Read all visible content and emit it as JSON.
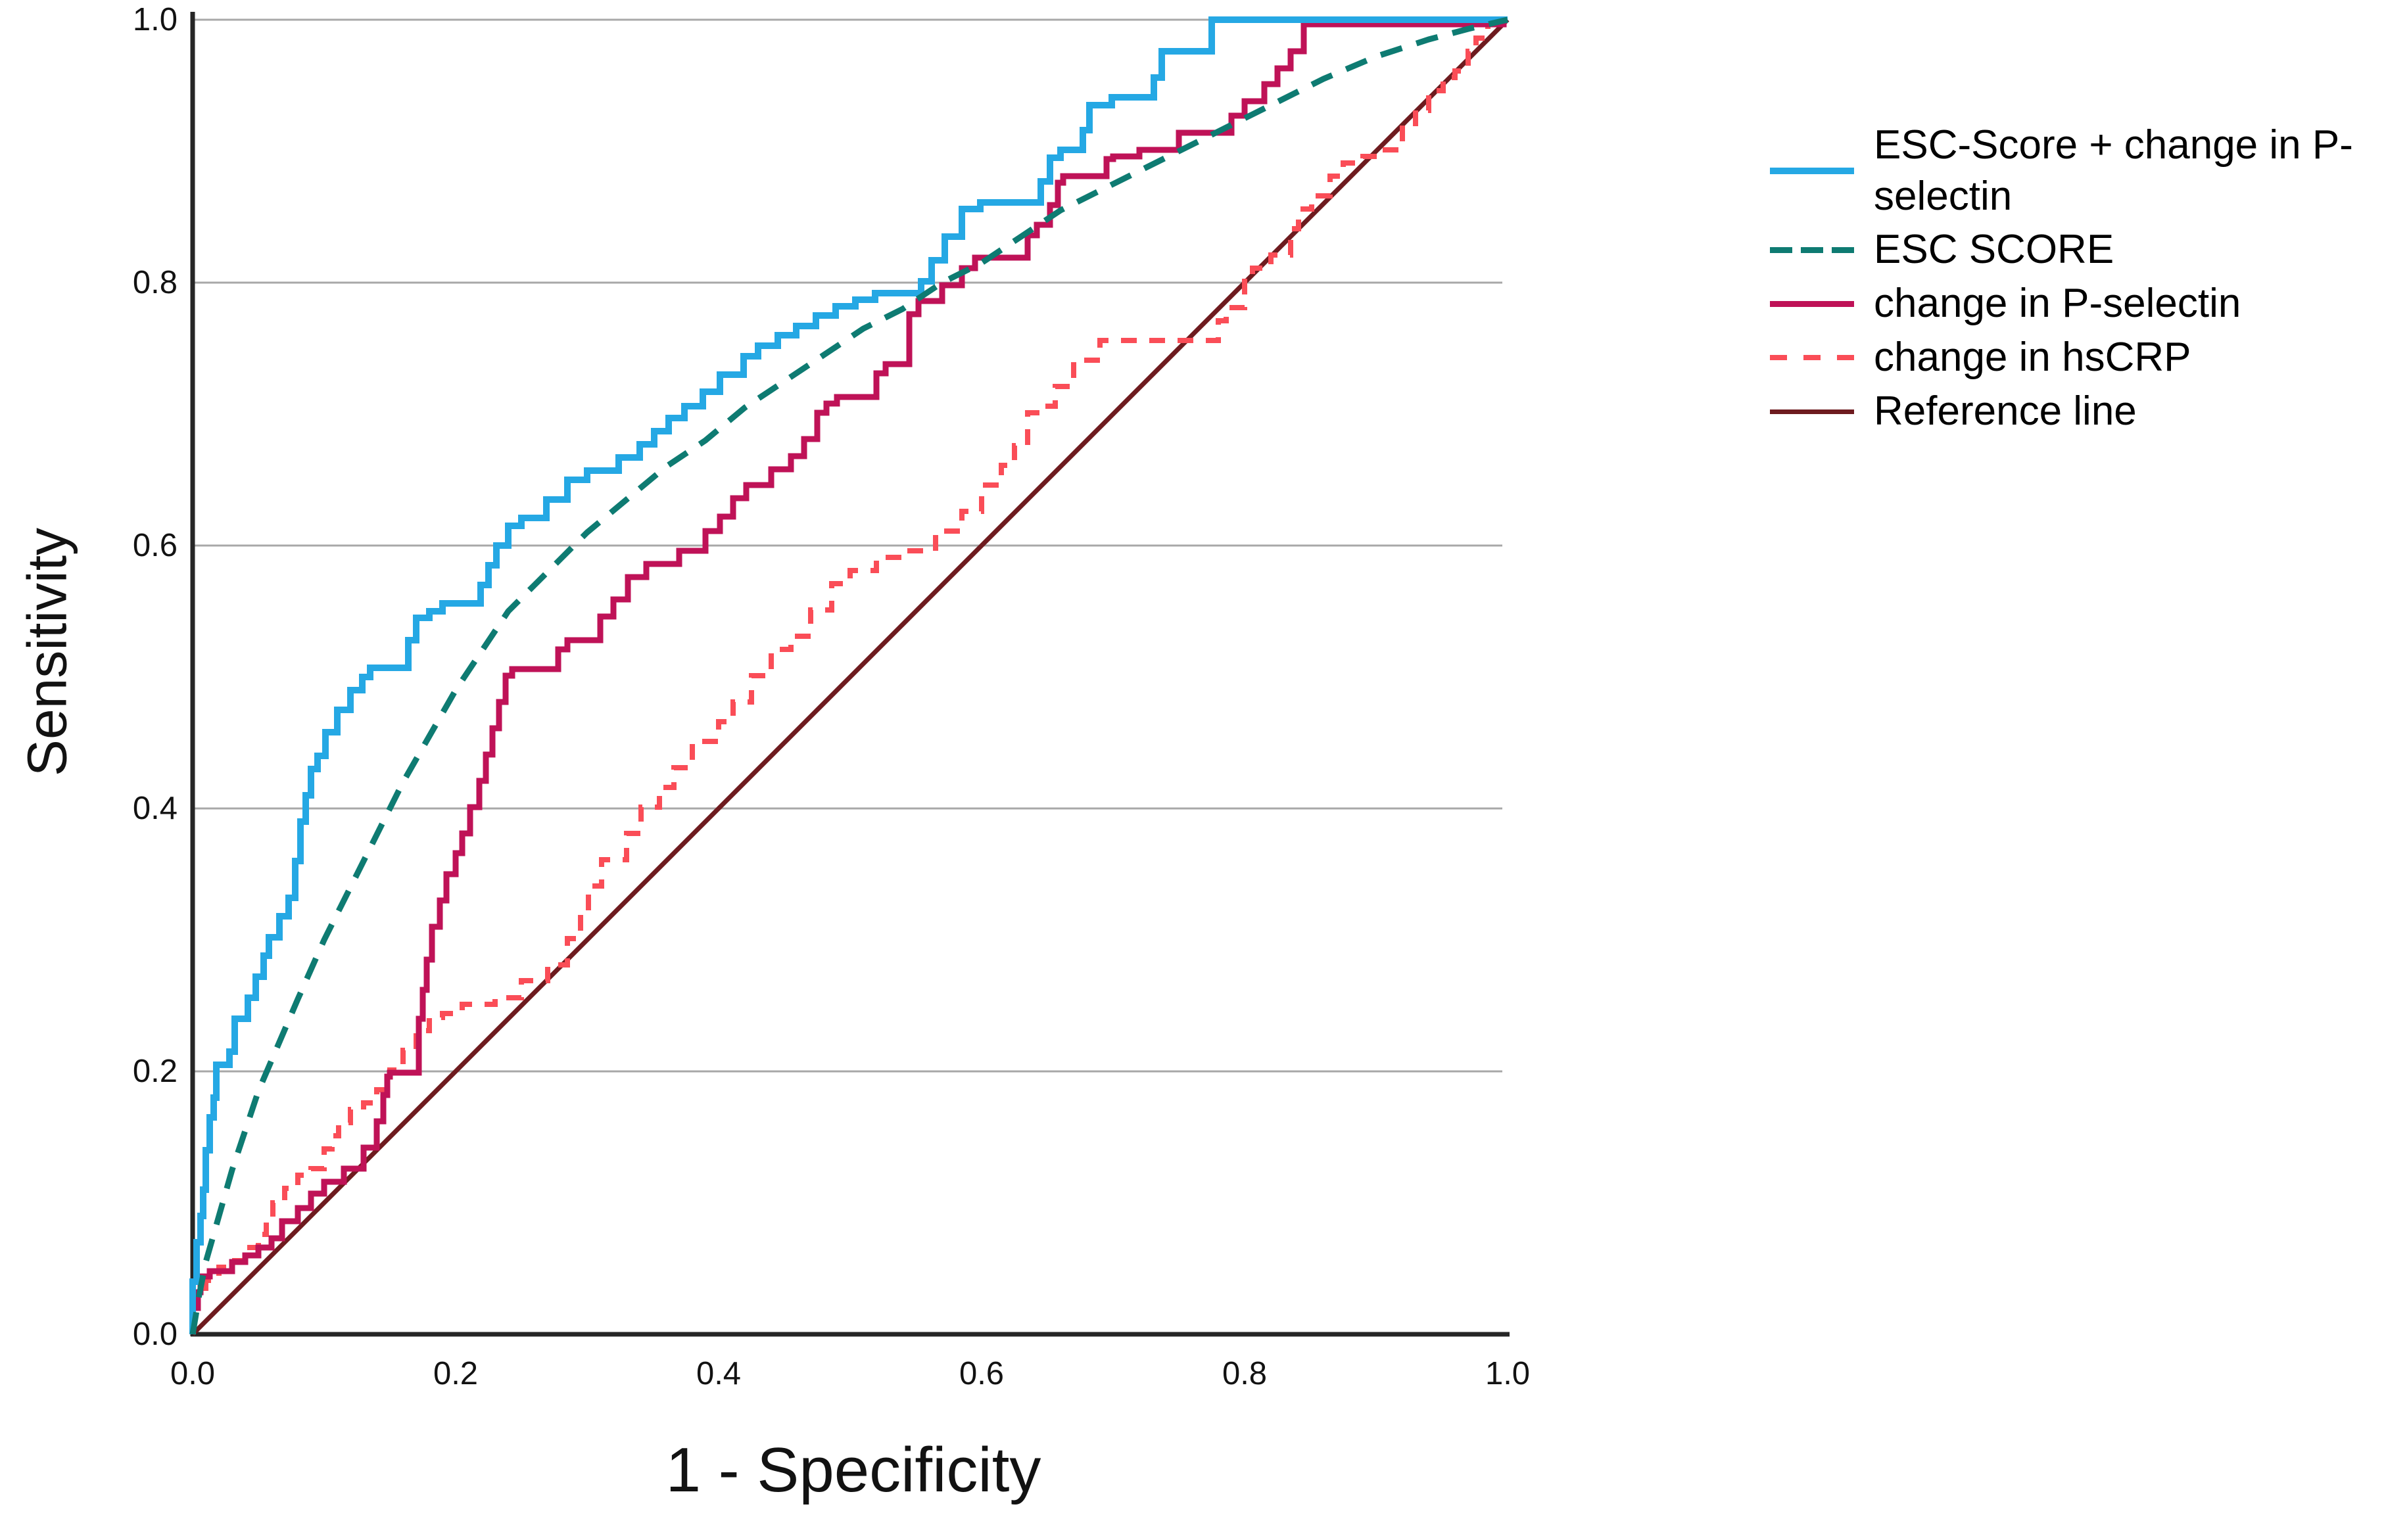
{
  "chart_data": {
    "type": "line",
    "subtype": "roc-curves",
    "title": "",
    "xlabel": "1 - Specificity",
    "ylabel": "Sensitivity",
    "xlim": [
      0.0,
      1.0
    ],
    "ylim": [
      0.0,
      1.0
    ],
    "x_ticks": [
      "0.0",
      "0.2",
      "0.4",
      "0.6",
      "0.8",
      "1.0"
    ],
    "y_ticks": [
      "0.0",
      "0.2",
      "0.4",
      "0.6",
      "0.8",
      "1.0"
    ],
    "grid": "horizontal-only",
    "grid_y": [
      0.2,
      0.4,
      0.6,
      0.8,
      1.0
    ],
    "legend_position": "right",
    "colors": {
      "grid": "#a8a8a8",
      "axis": "#262626",
      "text": "#121212",
      "background": "#ffffff"
    },
    "series": [
      {
        "id": "roc-curve-esc-score-plus-change-in-p-selectin",
        "name": "ESC-Score + change in P-selectin",
        "color": "#25a8e4",
        "style": "solid",
        "interp": "step",
        "width": 10,
        "points": [
          [
            0,
            0
          ],
          [
            0.003,
            0.04
          ],
          [
            0.006,
            0.07
          ],
          [
            0.008,
            0.09
          ],
          [
            0.01,
            0.11
          ],
          [
            0.013,
            0.14
          ],
          [
            0.016,
            0.165
          ],
          [
            0.018,
            0.18
          ],
          [
            0.028,
            0.205
          ],
          [
            0.032,
            0.215
          ],
          [
            0.042,
            0.24
          ],
          [
            0.048,
            0.256
          ],
          [
            0.054,
            0.272
          ],
          [
            0.058,
            0.288
          ],
          [
            0.066,
            0.302
          ],
          [
            0.073,
            0.318
          ],
          [
            0.078,
            0.332
          ],
          [
            0.082,
            0.36
          ],
          [
            0.086,
            0.39
          ],
          [
            0.09,
            0.41
          ],
          [
            0.095,
            0.43
          ],
          [
            0.101,
            0.44
          ],
          [
            0.11,
            0.458
          ],
          [
            0.12,
            0.475
          ],
          [
            0.129,
            0.49
          ],
          [
            0.135,
            0.5
          ],
          [
            0.164,
            0.507
          ],
          [
            0.17,
            0.528
          ],
          [
            0.18,
            0.545
          ],
          [
            0.19,
            0.55
          ],
          [
            0.219,
            0.556
          ],
          [
            0.225,
            0.57
          ],
          [
            0.231,
            0.585
          ],
          [
            0.24,
            0.6
          ],
          [
            0.25,
            0.615
          ],
          [
            0.269,
            0.621
          ],
          [
            0.285,
            0.635
          ],
          [
            0.3,
            0.65
          ],
          [
            0.324,
            0.657
          ],
          [
            0.34,
            0.667
          ],
          [
            0.351,
            0.677
          ],
          [
            0.362,
            0.687
          ],
          [
            0.374,
            0.697
          ],
          [
            0.388,
            0.706
          ],
          [
            0.401,
            0.717
          ],
          [
            0.419,
            0.73
          ],
          [
            0.43,
            0.744
          ],
          [
            0.445,
            0.752
          ],
          [
            0.459,
            0.76
          ],
          [
            0.474,
            0.767
          ],
          [
            0.489,
            0.775
          ],
          [
            0.504,
            0.782
          ],
          [
            0.519,
            0.787
          ],
          [
            0.554,
            0.792
          ],
          [
            0.562,
            0.801
          ],
          [
            0.572,
            0.817
          ],
          [
            0.585,
            0.835
          ],
          [
            0.599,
            0.856
          ],
          [
            0.645,
            0.861
          ],
          [
            0.652,
            0.877
          ],
          [
            0.66,
            0.895
          ],
          [
            0.677,
            0.901
          ],
          [
            0.682,
            0.916
          ],
          [
            0.699,
            0.935
          ],
          [
            0.731,
            0.941
          ],
          [
            0.737,
            0.956
          ],
          [
            0.775,
            0.976
          ],
          [
            0.778,
            1.0
          ],
          [
            1.0,
            1.0
          ]
        ]
      },
      {
        "id": "roc-curve-esc-score",
        "name": "ESC SCORE",
        "color": "#0e7b72",
        "style": "dashed",
        "dash": "34 23",
        "interp": "linear",
        "width": 9,
        "points": [
          [
            0,
            0
          ],
          [
            0.005,
            0.03
          ],
          [
            0.01,
            0.055
          ],
          [
            0.02,
            0.09
          ],
          [
            0.03,
            0.125
          ],
          [
            0.04,
            0.155
          ],
          [
            0.05,
            0.185
          ],
          [
            0.065,
            0.22
          ],
          [
            0.08,
            0.255
          ],
          [
            0.1,
            0.3
          ],
          [
            0.12,
            0.34
          ],
          [
            0.14,
            0.38
          ],
          [
            0.16,
            0.42
          ],
          [
            0.18,
            0.455
          ],
          [
            0.2,
            0.49
          ],
          [
            0.22,
            0.52
          ],
          [
            0.24,
            0.55
          ],
          [
            0.26,
            0.57
          ],
          [
            0.28,
            0.59
          ],
          [
            0.3,
            0.61
          ],
          [
            0.33,
            0.635
          ],
          [
            0.36,
            0.66
          ],
          [
            0.39,
            0.68
          ],
          [
            0.42,
            0.705
          ],
          [
            0.45,
            0.725
          ],
          [
            0.48,
            0.745
          ],
          [
            0.51,
            0.765
          ],
          [
            0.54,
            0.78
          ],
          [
            0.57,
            0.8
          ],
          [
            0.6,
            0.815
          ],
          [
            0.63,
            0.835
          ],
          [
            0.66,
            0.855
          ],
          [
            0.7,
            0.875
          ],
          [
            0.74,
            0.895
          ],
          [
            0.78,
            0.915
          ],
          [
            0.82,
            0.935
          ],
          [
            0.86,
            0.955
          ],
          [
            0.9,
            0.972
          ],
          [
            0.94,
            0.985
          ],
          [
            0.97,
            0.993
          ],
          [
            1.0,
            1.0
          ]
        ]
      },
      {
        "id": "roc-curve-change-in-p-selectin",
        "name": "change in P-selectin",
        "color": "#bf1257",
        "style": "solid",
        "interp": "step",
        "width": 9,
        "points": [
          [
            0,
            0
          ],
          [
            0.004,
            0.02
          ],
          [
            0.006,
            0.032
          ],
          [
            0.013,
            0.044
          ],
          [
            0.03,
            0.048
          ],
          [
            0.04,
            0.055
          ],
          [
            0.05,
            0.06
          ],
          [
            0.06,
            0.066
          ],
          [
            0.068,
            0.073
          ],
          [
            0.08,
            0.086
          ],
          [
            0.09,
            0.096
          ],
          [
            0.1,
            0.107
          ],
          [
            0.115,
            0.116
          ],
          [
            0.13,
            0.126
          ],
          [
            0.14,
            0.142
          ],
          [
            0.145,
            0.162
          ],
          [
            0.148,
            0.182
          ],
          [
            0.15,
            0.196
          ],
          [
            0.172,
            0.199
          ],
          [
            0.175,
            0.24
          ],
          [
            0.178,
            0.262
          ],
          [
            0.182,
            0.285
          ],
          [
            0.188,
            0.31
          ],
          [
            0.193,
            0.33
          ],
          [
            0.2,
            0.35
          ],
          [
            0.205,
            0.366
          ],
          [
            0.211,
            0.381
          ],
          [
            0.218,
            0.401
          ],
          [
            0.223,
            0.421
          ],
          [
            0.228,
            0.441
          ],
          [
            0.233,
            0.461
          ],
          [
            0.238,
            0.481
          ],
          [
            0.243,
            0.501
          ],
          [
            0.278,
            0.506
          ],
          [
            0.285,
            0.521
          ],
          [
            0.31,
            0.528
          ],
          [
            0.32,
            0.546
          ],
          [
            0.331,
            0.559
          ],
          [
            0.345,
            0.576
          ],
          [
            0.37,
            0.586
          ],
          [
            0.39,
            0.596
          ],
          [
            0.401,
            0.611
          ],
          [
            0.411,
            0.622
          ],
          [
            0.421,
            0.636
          ],
          [
            0.44,
            0.646
          ],
          [
            0.455,
            0.658
          ],
          [
            0.465,
            0.668
          ],
          [
            0.475,
            0.681
          ],
          [
            0.482,
            0.701
          ],
          [
            0.49,
            0.708
          ],
          [
            0.52,
            0.713
          ],
          [
            0.527,
            0.731
          ],
          [
            0.545,
            0.738
          ],
          [
            0.552,
            0.776
          ],
          [
            0.57,
            0.786
          ],
          [
            0.585,
            0.798
          ],
          [
            0.595,
            0.811
          ],
          [
            0.635,
            0.819
          ],
          [
            0.642,
            0.836
          ],
          [
            0.652,
            0.844
          ],
          [
            0.658,
            0.859
          ],
          [
            0.662,
            0.876
          ],
          [
            0.695,
            0.881
          ],
          [
            0.7,
            0.894
          ],
          [
            0.72,
            0.896
          ],
          [
            0.75,
            0.901
          ],
          [
            0.79,
            0.914
          ],
          [
            0.8,
            0.927
          ],
          [
            0.815,
            0.938
          ],
          [
            0.825,
            0.951
          ],
          [
            0.835,
            0.963
          ],
          [
            0.845,
            0.976
          ],
          [
            0.848,
            0.9965
          ],
          [
            0.997,
            0.9965
          ],
          [
            1.0,
            1.0
          ]
        ]
      },
      {
        "id": "roc-curve-change-in-hscrp",
        "name": "change in hsCRP",
        "color": "#fa4d57",
        "style": "dashed",
        "dash": "24 19",
        "interp": "step",
        "width": 8,
        "points": [
          [
            0,
            0
          ],
          [
            0.003,
            0.02
          ],
          [
            0.01,
            0.031
          ],
          [
            0.02,
            0.041
          ],
          [
            0.03,
            0.051
          ],
          [
            0.04,
            0.056
          ],
          [
            0.05,
            0.066
          ],
          [
            0.056,
            0.076
          ],
          [
            0.061,
            0.086
          ],
          [
            0.07,
            0.1
          ],
          [
            0.08,
            0.111
          ],
          [
            0.09,
            0.121
          ],
          [
            0.1,
            0.126
          ],
          [
            0.106,
            0.141
          ],
          [
            0.111,
            0.151
          ],
          [
            0.12,
            0.161
          ],
          [
            0.13,
            0.171
          ],
          [
            0.14,
            0.176
          ],
          [
            0.15,
            0.186
          ],
          [
            0.16,
            0.201
          ],
          [
            0.17,
            0.216
          ],
          [
            0.18,
            0.231
          ],
          [
            0.19,
            0.241
          ],
          [
            0.205,
            0.244
          ],
          [
            0.23,
            0.251
          ],
          [
            0.25,
            0.256
          ],
          [
            0.27,
            0.269
          ],
          [
            0.285,
            0.281
          ],
          [
            0.295,
            0.301
          ],
          [
            0.301,
            0.321
          ],
          [
            0.311,
            0.341
          ],
          [
            0.33,
            0.361
          ],
          [
            0.341,
            0.381
          ],
          [
            0.355,
            0.401
          ],
          [
            0.366,
            0.416
          ],
          [
            0.38,
            0.431
          ],
          [
            0.4,
            0.451
          ],
          [
            0.411,
            0.466
          ],
          [
            0.425,
            0.481
          ],
          [
            0.44,
            0.501
          ],
          [
            0.455,
            0.521
          ],
          [
            0.47,
            0.531
          ],
          [
            0.486,
            0.551
          ],
          [
            0.5,
            0.571
          ],
          [
            0.52,
            0.581
          ],
          [
            0.54,
            0.591
          ],
          [
            0.565,
            0.596
          ],
          [
            0.585,
            0.611
          ],
          [
            0.6,
            0.626
          ],
          [
            0.615,
            0.646
          ],
          [
            0.625,
            0.661
          ],
          [
            0.635,
            0.676
          ],
          [
            0.645,
            0.701
          ],
          [
            0.656,
            0.706
          ],
          [
            0.67,
            0.721
          ],
          [
            0.69,
            0.741
          ],
          [
            0.7,
            0.756
          ],
          [
            0.78,
            0.756
          ],
          [
            0.786,
            0.771
          ],
          [
            0.8,
            0.781
          ],
          [
            0.806,
            0.801
          ],
          [
            0.82,
            0.811
          ],
          [
            0.835,
            0.821
          ],
          [
            0.841,
            0.841
          ],
          [
            0.851,
            0.856
          ],
          [
            0.865,
            0.866
          ],
          [
            0.875,
            0.881
          ],
          [
            0.89,
            0.891
          ],
          [
            0.905,
            0.896
          ],
          [
            0.92,
            0.901
          ],
          [
            0.93,
            0.921
          ],
          [
            0.94,
            0.931
          ],
          [
            0.951,
            0.946
          ],
          [
            0.96,
            0.956
          ],
          [
            0.97,
            0.961
          ],
          [
            0.976,
            0.976
          ],
          [
            0.985,
            0.986
          ],
          [
            1.0,
            1.0
          ]
        ]
      },
      {
        "id": "reference-line",
        "name": "Reference line",
        "color": "#6e1b1f",
        "style": "solid",
        "interp": "linear",
        "width": 7,
        "points": [
          [
            0,
            0
          ],
          [
            1,
            1
          ]
        ]
      }
    ]
  }
}
